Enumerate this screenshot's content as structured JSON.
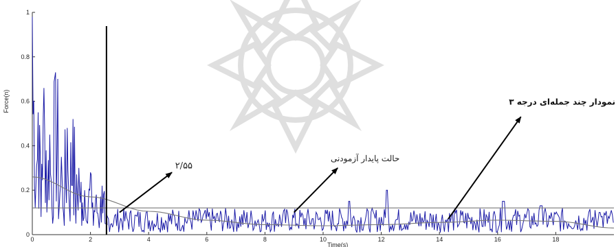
{
  "chart_data": {
    "type": "line",
    "xlabel": "Time(s)",
    "ylabel": "Force(n)",
    "xlim": [
      0,
      20
    ],
    "ylim": [
      0,
      1
    ],
    "x_ticks": [
      0,
      2,
      4,
      6,
      8,
      10,
      12,
      14,
      16,
      18
    ],
    "y_ticks": [
      0,
      0.2,
      0.4,
      0.6,
      0.8,
      1
    ],
    "x_tick_labels": [
      "0",
      "2",
      "4",
      "6",
      "8",
      "10",
      "12",
      "14",
      "16",
      "18"
    ],
    "y_tick_labels": [
      "0",
      "0.2",
      "0.4",
      "0.6",
      "0.8",
      "1"
    ],
    "grid": false,
    "series": [
      {
        "color": "#1a1aa6",
        "style": "noisy",
        "x": [
          0,
          0.1,
          0.2,
          0.3,
          0.4,
          0.5,
          0.6,
          0.7,
          0.8,
          0.9,
          1.0,
          1.1,
          1.2,
          1.3,
          1.4,
          1.5,
          1.6,
          1.7,
          1.8,
          1.9,
          2.0,
          2.1,
          2.2,
          2.3,
          2.4,
          2.5,
          2.6
        ],
        "y": [
          0.98,
          0.12,
          0.55,
          0.08,
          0.66,
          0.1,
          0.45,
          0.05,
          0.73,
          0.07,
          0.35,
          0.04,
          0.48,
          0.06,
          0.52,
          0.05,
          0.3,
          0.04,
          0.2,
          0.05,
          0.28,
          0.04,
          0.18,
          0.03,
          0.22,
          0.05,
          0.02
        ],
        "base_after": 2.55,
        "base_level": 0.05,
        "spikes": [
          [
            10.9,
            0.15
          ],
          [
            12.2,
            0.2
          ],
          [
            16.2,
            0.15
          ],
          [
            17.5,
            0.13
          ],
          [
            19.5,
            0.1
          ]
        ]
      },
      {
        "color": "#777777",
        "style": "smooth",
        "x": [
          0,
          2,
          4,
          6,
          8,
          10,
          12,
          14,
          16,
          18,
          20
        ],
        "y": [
          0.26,
          0.17,
          0.105,
          0.065,
          0.045,
          0.04,
          0.045,
          0.055,
          0.065,
          0.06,
          0.03
        ]
      },
      {
        "color": "#777777",
        "style": "flat",
        "x": [
          0,
          20
        ],
        "y": [
          0.12,
          0.12
        ]
      }
    ],
    "vertical_marker": {
      "x": 2.55,
      "y_top": 1.0
    },
    "annotations": [
      {
        "text": "۲/۵۵",
        "class": "annot",
        "size": 13,
        "arrow_from": [
          3.0,
          0.1
        ],
        "arrow_to": [
          4.8,
          0.28
        ]
      },
      {
        "text": "حالت پایدار آزمودنی",
        "class": "annot",
        "size": 12,
        "arrow_from": [
          9.0,
          0.1
        ],
        "arrow_to": [
          10.5,
          0.3
        ]
      },
      {
        "text": "نمودار چند جمله‌ای درجه ۳",
        "class": "annot-bold",
        "size": 12,
        "arrow_from": [
          14.3,
          0.07
        ],
        "arrow_to": [
          16.8,
          0.53
        ]
      }
    ]
  }
}
